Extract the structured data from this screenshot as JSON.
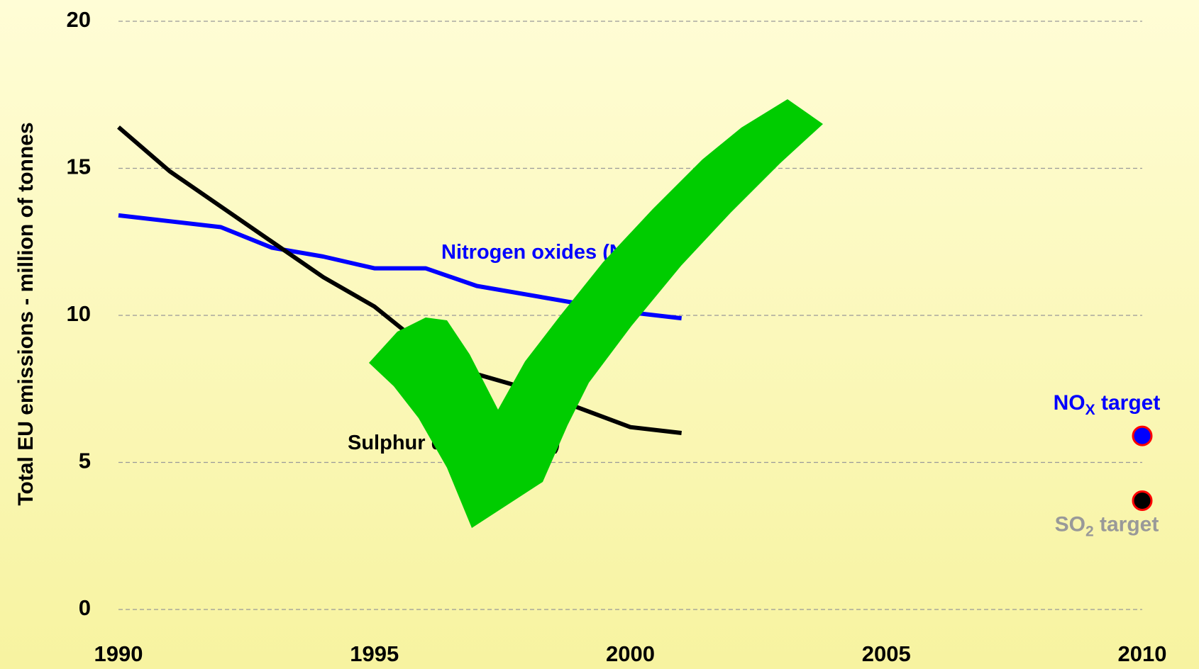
{
  "chart_data": {
    "type": "line",
    "ylabel": "Total EU emissions - million of tonnes",
    "xlim": [
      1990,
      2010
    ],
    "xticks": [
      1990,
      1995,
      2000,
      2005,
      2010
    ],
    "ylim": [
      0,
      20
    ],
    "yticks": [
      0,
      5,
      10,
      15,
      20
    ],
    "grid": true,
    "x": [
      1990,
      1991,
      1992,
      1993,
      1994,
      1995,
      1996,
      1997,
      1998,
      1999,
      2000,
      2001
    ],
    "series": [
      {
        "label": [
          "Nitrogen oxides (NO",
          "X",
          ")"
        ],
        "color": "#0000ff",
        "values": [
          13.4,
          13.2,
          13.0,
          12.3,
          12.0,
          11.6,
          11.6,
          11.0,
          10.7,
          10.4,
          10.1,
          9.9
        ]
      },
      {
        "label": [
          "Sulphur dioxide (SO",
          "2",
          ")"
        ],
        "color": "#000000",
        "values": [
          16.4,
          14.9,
          13.7,
          12.5,
          11.3,
          10.3,
          8.9,
          8.0,
          7.5,
          6.85,
          6.2,
          6.0
        ]
      }
    ],
    "targets": [
      {
        "label": [
          "NO",
          "X",
          " target"
        ],
        "x": 2010,
        "value": 5.9,
        "color": "#0000ff",
        "label_color": "#0000ff"
      },
      {
        "label": [
          "SO",
          "2",
          " target"
        ],
        "x": 2010,
        "value": 3.7,
        "color": "#000000",
        "label_color": "#999999"
      }
    ],
    "target_edge": "#ff0000"
  }
}
